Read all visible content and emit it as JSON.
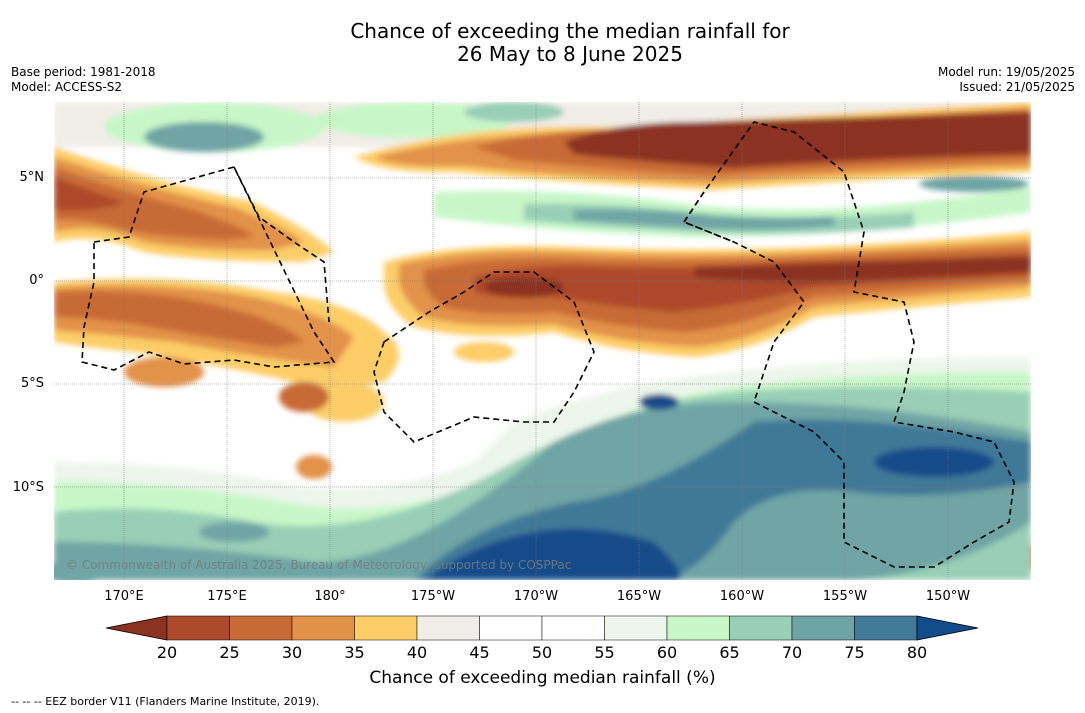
{
  "header": {
    "title_line1": "Chance of exceeding the median rainfall for",
    "title_line2": "26 May to 8 June 2025",
    "base_period": "Base period: 1981-2018",
    "model": "Model: ACCESS-S2",
    "model_run": "Model run: 19/05/2025",
    "issued": "Issued: 21/05/2025"
  },
  "map": {
    "copyright": "© Commonwealth of Australia 2025, Bureau of Meteorology, supported by COSPPac",
    "lat_labels": [
      "5°N",
      "0°",
      "5°S",
      "10°S"
    ],
    "lon_labels": [
      "170°E",
      "175°E",
      "180°",
      "175°W",
      "170°W",
      "165°W",
      "160°W",
      "155°W",
      "150°W"
    ]
  },
  "colorbar": {
    "label": "Chance of exceeding median rainfall (%)",
    "ticks": [
      "20",
      "25",
      "30",
      "35",
      "40",
      "45",
      "50",
      "55",
      "60",
      "65",
      "70",
      "75",
      "80"
    ],
    "colors": [
      "#8b3220",
      "#ad4a2b",
      "#c86a35",
      "#e29248",
      "#fdcd68",
      "#f1ede7",
      "#ffffff",
      "#ffffff",
      "#ecf6ea",
      "#c7f7c8",
      "#98cfb6",
      "#6fa4a5",
      "#417998",
      "#124c8a"
    ]
  },
  "footer": {
    "eez_legend": "--  --  -- EEZ border V11 (Flanders Marine Institute, 2019)."
  }
}
